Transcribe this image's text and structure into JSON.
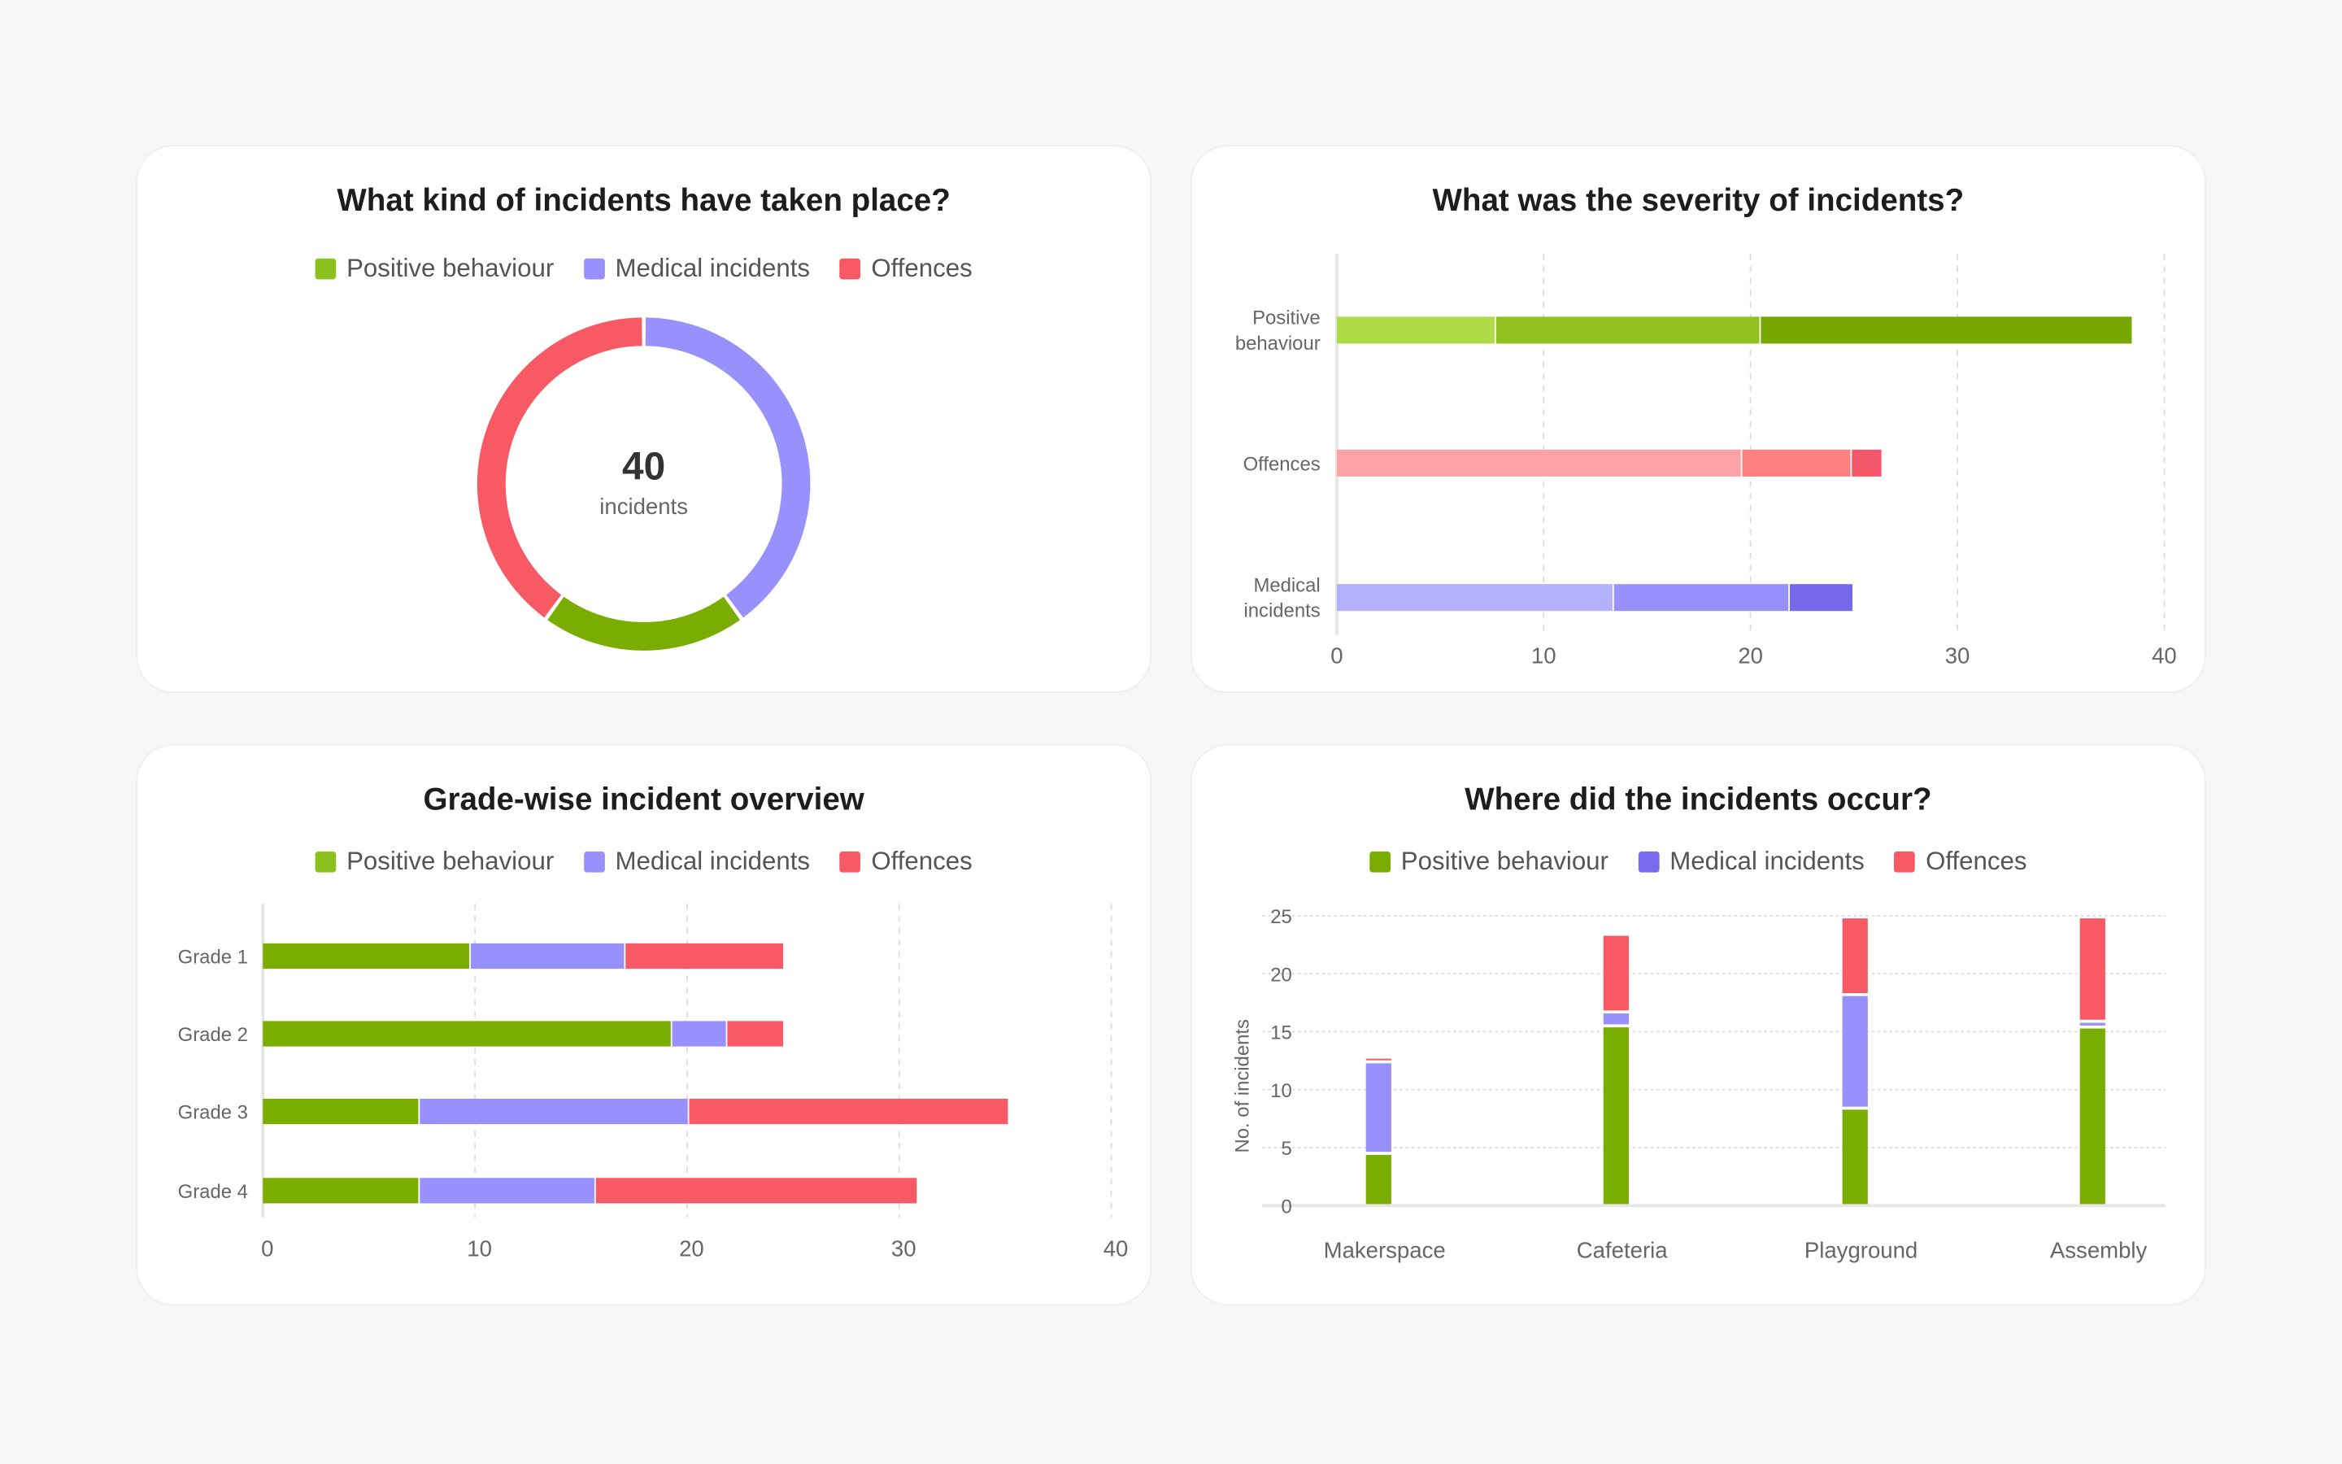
{
  "colors": {
    "positive": "#79ad00",
    "medical": "#9891fb",
    "medical_dark": "#7a68ef",
    "offences": "#f75a64",
    "positive_shades": [
      "#aedb48",
      "#93c11f",
      "#76a800"
    ],
    "offences_shades": [
      "#fca3a6",
      "#fd8181",
      "#f5576a"
    ],
    "medical_shades": [
      "#b5b0fc",
      "#9790fb",
      "#7768ee"
    ]
  },
  "chart_data": [
    {
      "id": "types",
      "type": "pie",
      "title": "What kind of incidents have taken place?",
      "legend": [
        "Positive behaviour",
        "Medical incidents",
        "Offences"
      ],
      "center_value": "40",
      "center_label": "incidents",
      "slices": [
        {
          "name": "Medical incidents",
          "value": 16
        },
        {
          "name": "Positive behaviour",
          "value": 8
        },
        {
          "name": "Offences",
          "value": 16
        }
      ]
    },
    {
      "id": "severity",
      "type": "bar",
      "orientation": "horizontal",
      "stacked": true,
      "title": "What was the severity of incidents?",
      "categories": [
        "Positive behaviour",
        "Offences",
        "Medical incidents"
      ],
      "stacks": [
        [
          7.7,
          12.8,
          18
        ],
        [
          19.6,
          5.3,
          1.5
        ],
        [
          13.4,
          8.5,
          3.1
        ]
      ],
      "xlim": [
        0,
        40
      ],
      "xticks": [
        "0",
        "10",
        "20",
        "30",
        "40"
      ],
      "grid": "vertical dashed"
    },
    {
      "id": "grades",
      "type": "bar",
      "orientation": "horizontal",
      "stacked": true,
      "title": "Grade-wise incident overview",
      "legend": [
        "Positive behaviour",
        "Medical incidents",
        "Offences"
      ],
      "categories": [
        "Grade 1",
        "Grade 2",
        "Grade 3",
        "Grade 4"
      ],
      "series": [
        {
          "name": "Positive behaviour",
          "values": [
            9.8,
            19.3,
            7.4,
            7.4
          ]
        },
        {
          "name": "Medical incidents",
          "values": [
            7.3,
            2.6,
            12.7,
            8.3
          ]
        },
        {
          "name": "Offences",
          "values": [
            7.5,
            2.7,
            15.1,
            15.2
          ]
        }
      ],
      "xlim": [
        0,
        40
      ],
      "xticks": [
        "0",
        "10",
        "20",
        "30",
        "40"
      ],
      "grid": "vertical dashed"
    },
    {
      "id": "locations",
      "type": "bar",
      "orientation": "vertical",
      "stacked": true,
      "title": "Where did the incidents occur?",
      "legend": [
        "Positive behaviour",
        "Medical incidents",
        "Offences"
      ],
      "ylabel": "No. of incidents",
      "categories": [
        "Makerspace",
        "Cafeteria",
        "Playground",
        "Assembly"
      ],
      "series": [
        {
          "name": "Positive behaviour",
          "values": [
            4.5,
            15.5,
            8.4,
            15.4
          ]
        },
        {
          "name": "Medical incidents",
          "values": [
            7.9,
            1.2,
            9.8,
            0.5
          ]
        },
        {
          "name": "Offences",
          "values": [
            0.4,
            6.7,
            6.7,
            9.0
          ]
        }
      ],
      "ylim": [
        0,
        25
      ],
      "yticks": [
        "0",
        "5",
        "10",
        "15",
        "20",
        "25"
      ],
      "grid": "horizontal dotted"
    }
  ]
}
